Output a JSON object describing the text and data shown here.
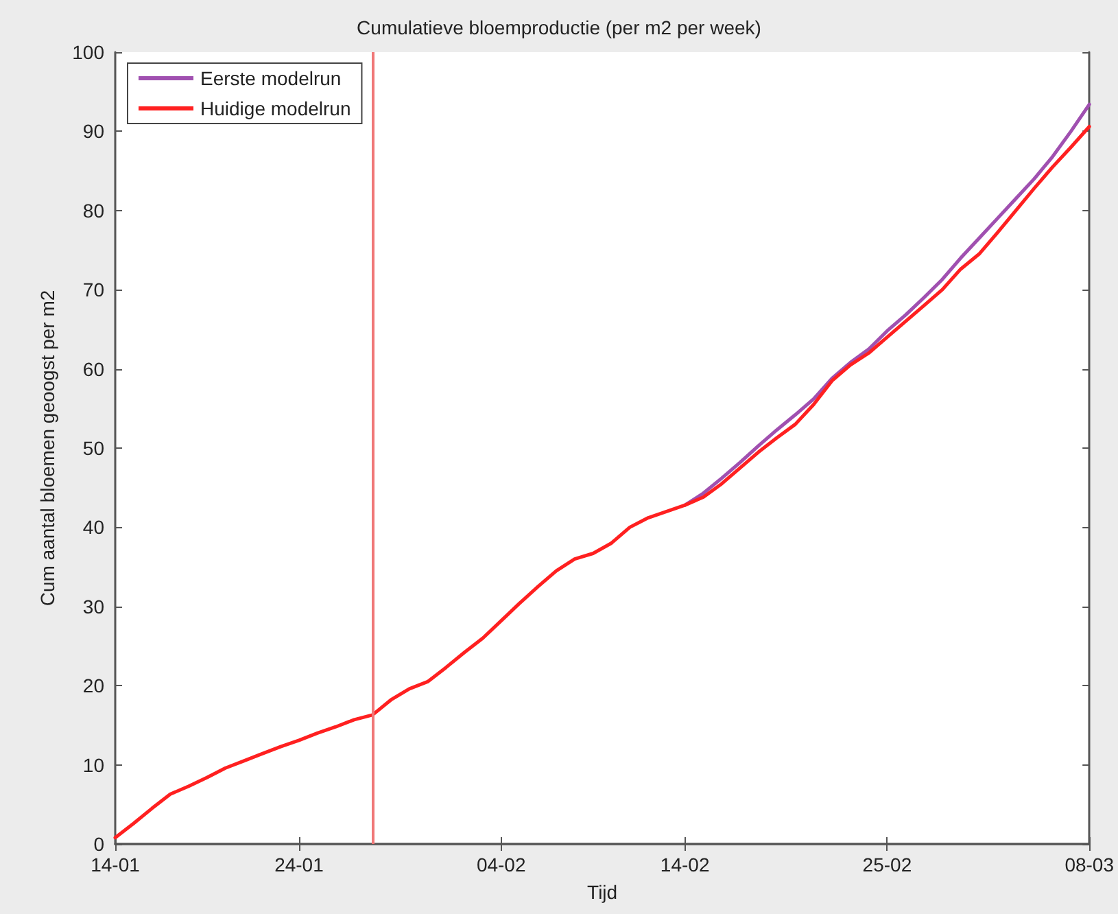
{
  "chart_data": {
    "type": "line",
    "title": "Cumulatieve bloemproductie (per m2 per week)",
    "xlabel": "Tijd",
    "ylabel": "Cum aantal bloemen geoogst per m2",
    "x": [
      "--01-14",
      "--01-15",
      "--01-16",
      "--01-17",
      "--01-18",
      "--01-19",
      "--01-20",
      "--01-21",
      "--01-22",
      "--01-23",
      "--01-24",
      "--01-25",
      "--01-26",
      "--01-27",
      "--01-28",
      "--01-29",
      "--01-30",
      "--01-31",
      "--02-01",
      "--02-02",
      "--02-03",
      "--02-04",
      "--02-05",
      "--02-06",
      "--02-07",
      "--02-08",
      "--02-09",
      "--02-10",
      "--02-11",
      "--02-12",
      "--02-13",
      "--02-14",
      "--02-15",
      "--02-16",
      "--02-17",
      "--02-18",
      "--02-19",
      "--02-20",
      "--02-21",
      "--02-22",
      "--02-23",
      "--02-24",
      "--02-25",
      "--02-26",
      "--02-27",
      "--02-28",
      "--03-01",
      "--03-02",
      "--03-03",
      "--03-04",
      "--03-05",
      "--03-06",
      "--03-07",
      "--03-08"
    ],
    "series": [
      {
        "name": "Eerste modelrun",
        "color": "#a050b0",
        "values": [
          null,
          null,
          null,
          null,
          null,
          null,
          null,
          null,
          null,
          null,
          null,
          null,
          null,
          null,
          null,
          null,
          null,
          null,
          null,
          null,
          null,
          null,
          null,
          null,
          null,
          null,
          null,
          null,
          null,
          null,
          null,
          42.8,
          44.3,
          46.2,
          48.2,
          50.3,
          52.3,
          54.2,
          56.2,
          58.8,
          60.8,
          62.5,
          64.8,
          66.8,
          69.0,
          71.3,
          74.0,
          76.5,
          79.0,
          81.5,
          84.0,
          86.8,
          90.0,
          93.4
        ]
      },
      {
        "name": "Huidige modelrun",
        "color": "#ff2020",
        "values": [
          0.8,
          2.6,
          4.5,
          6.3,
          7.3,
          8.4,
          9.6,
          10.5,
          11.4,
          12.3,
          13.1,
          14.0,
          14.8,
          15.7,
          16.3,
          18.2,
          19.6,
          20.5,
          22.3,
          24.2,
          26.0,
          28.2,
          30.4,
          32.5,
          34.5,
          36.0,
          36.7,
          38.0,
          40.0,
          41.2,
          42.0,
          42.8,
          43.8,
          45.5,
          47.5,
          49.5,
          51.3,
          53.0,
          55.5,
          58.5,
          60.5,
          62.0,
          64.0,
          66.0,
          68.0,
          70.0,
          72.6,
          74.5,
          77.2,
          80.0,
          82.8,
          85.5,
          88.0,
          90.6
        ]
      }
    ],
    "xlim": [
      "--01-14",
      "--03-08"
    ],
    "xticks": [
      {
        "value": "--01-14",
        "label": "14-01"
      },
      {
        "value": "--01-24",
        "label": "24-01"
      },
      {
        "value": "--02-04",
        "label": "04-02"
      },
      {
        "value": "--02-14",
        "label": "14-02"
      },
      {
        "value": "--02-25",
        "label": "25-02"
      },
      {
        "value": "--03-08",
        "label": "08-03"
      }
    ],
    "ylim": [
      0,
      100
    ],
    "yticks": [
      0,
      10,
      20,
      30,
      40,
      50,
      60,
      70,
      80,
      90,
      100
    ],
    "ref_lines": [
      {
        "axis": "x",
        "value": "--01-28",
        "label": null,
        "color": "#f07878"
      }
    ],
    "legend": "top left",
    "grid": false,
    "marker": "none",
    "line_style": "solid"
  }
}
